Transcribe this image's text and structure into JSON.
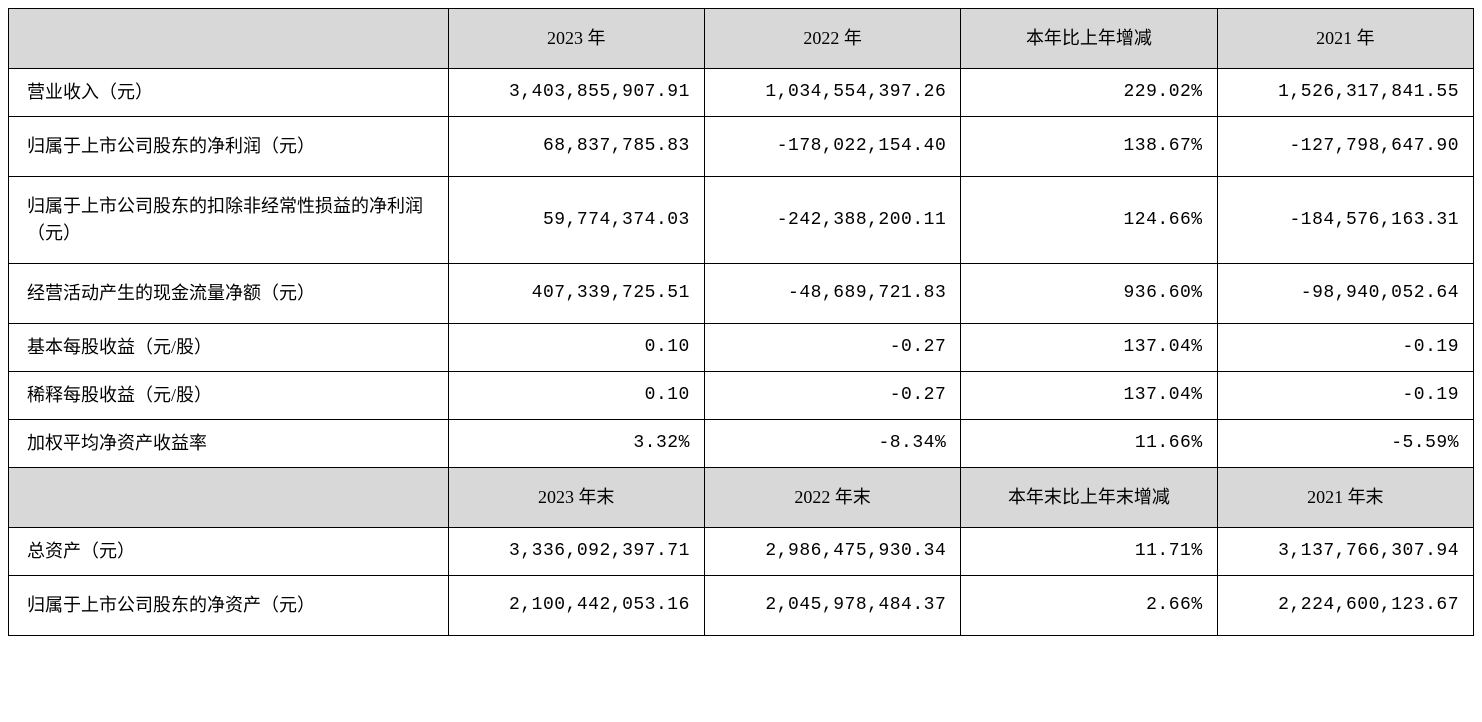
{
  "table": {
    "headers1": {
      "col1": "",
      "col2": "2023 年",
      "col3": "2022 年",
      "col4": "本年比上年增减",
      "col5": "2021 年"
    },
    "rows1": [
      {
        "label": "营业收入（元）",
        "y2023": "3,403,855,907.91",
        "y2022": "1,034,554,397.26",
        "change": "229.02%",
        "y2021": "1,526,317,841.55"
      },
      {
        "label": "归属于上市公司股东的净利润（元）",
        "y2023": "68,837,785.83",
        "y2022": "-178,022,154.40",
        "change": "138.67%",
        "y2021": "-127,798,647.90"
      },
      {
        "label": "归属于上市公司股东的扣除非经常性损益的净利润（元）",
        "y2023": "59,774,374.03",
        "y2022": "-242,388,200.11",
        "change": "124.66%",
        "y2021": "-184,576,163.31"
      },
      {
        "label": "经营活动产生的现金流量净额（元）",
        "y2023": "407,339,725.51",
        "y2022": "-48,689,721.83",
        "change": "936.60%",
        "y2021": "-98,940,052.64"
      },
      {
        "label": "基本每股收益（元/股）",
        "y2023": "0.10",
        "y2022": "-0.27",
        "change": "137.04%",
        "y2021": "-0.19"
      },
      {
        "label": "稀释每股收益（元/股）",
        "y2023": "0.10",
        "y2022": "-0.27",
        "change": "137.04%",
        "y2021": "-0.19"
      },
      {
        "label": "加权平均净资产收益率",
        "y2023": "3.32%",
        "y2022": "-8.34%",
        "change": "11.66%",
        "y2021": "-5.59%"
      }
    ],
    "headers2": {
      "col1": "",
      "col2": "2023 年末",
      "col3": "2022 年末",
      "col4": "本年末比上年末增减",
      "col5": "2021 年末"
    },
    "rows2": [
      {
        "label": "总资产（元）",
        "y2023": "3,336,092,397.71",
        "y2022": "2,986,475,930.34",
        "change": "11.71%",
        "y2021": "3,137,766,307.94"
      },
      {
        "label": "归属于上市公司股东的净资产（元）",
        "y2023": "2,100,442,053.16",
        "y2022": "2,045,978,484.37",
        "change": "2.66%",
        "y2021": "2,224,600,123.67"
      }
    ]
  }
}
